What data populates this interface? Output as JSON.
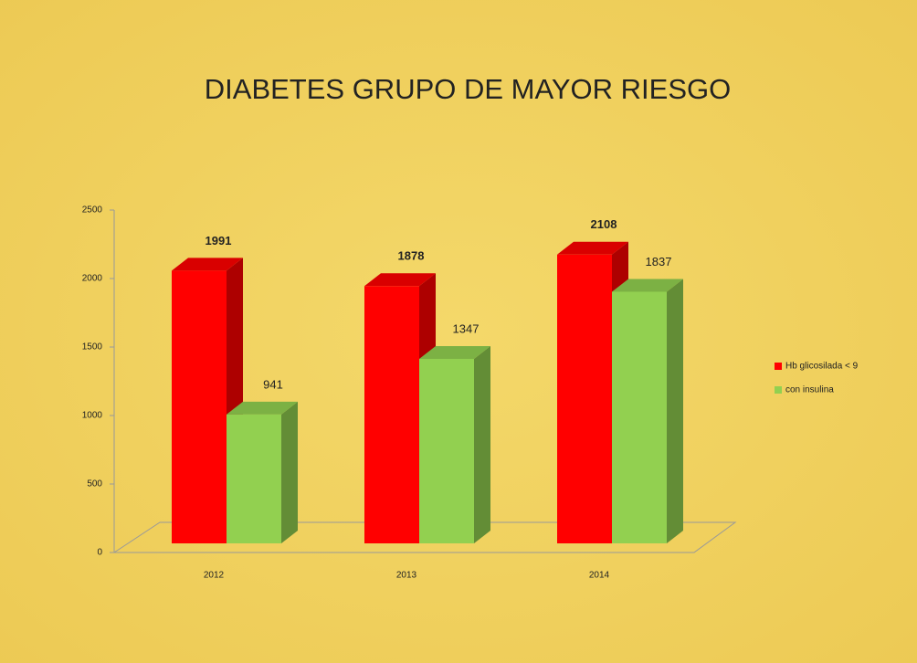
{
  "chart_data": {
    "type": "bar3d",
    "title": "DIABETES GRUPO DE MAYOR RIESGO",
    "categories": [
      "2012",
      "2013",
      "2014"
    ],
    "series": [
      {
        "name": "Hb glicosilada < 9",
        "color": "#ff0000",
        "values": [
          1991,
          1878,
          2108
        ]
      },
      {
        "name": "con insulina",
        "color": "#92d050",
        "values": [
          941,
          1347,
          1837
        ]
      }
    ],
    "ylim": [
      0,
      2500
    ],
    "yticks": [
      0,
      500,
      1000,
      1500,
      2000,
      2500
    ],
    "legend": "right"
  }
}
